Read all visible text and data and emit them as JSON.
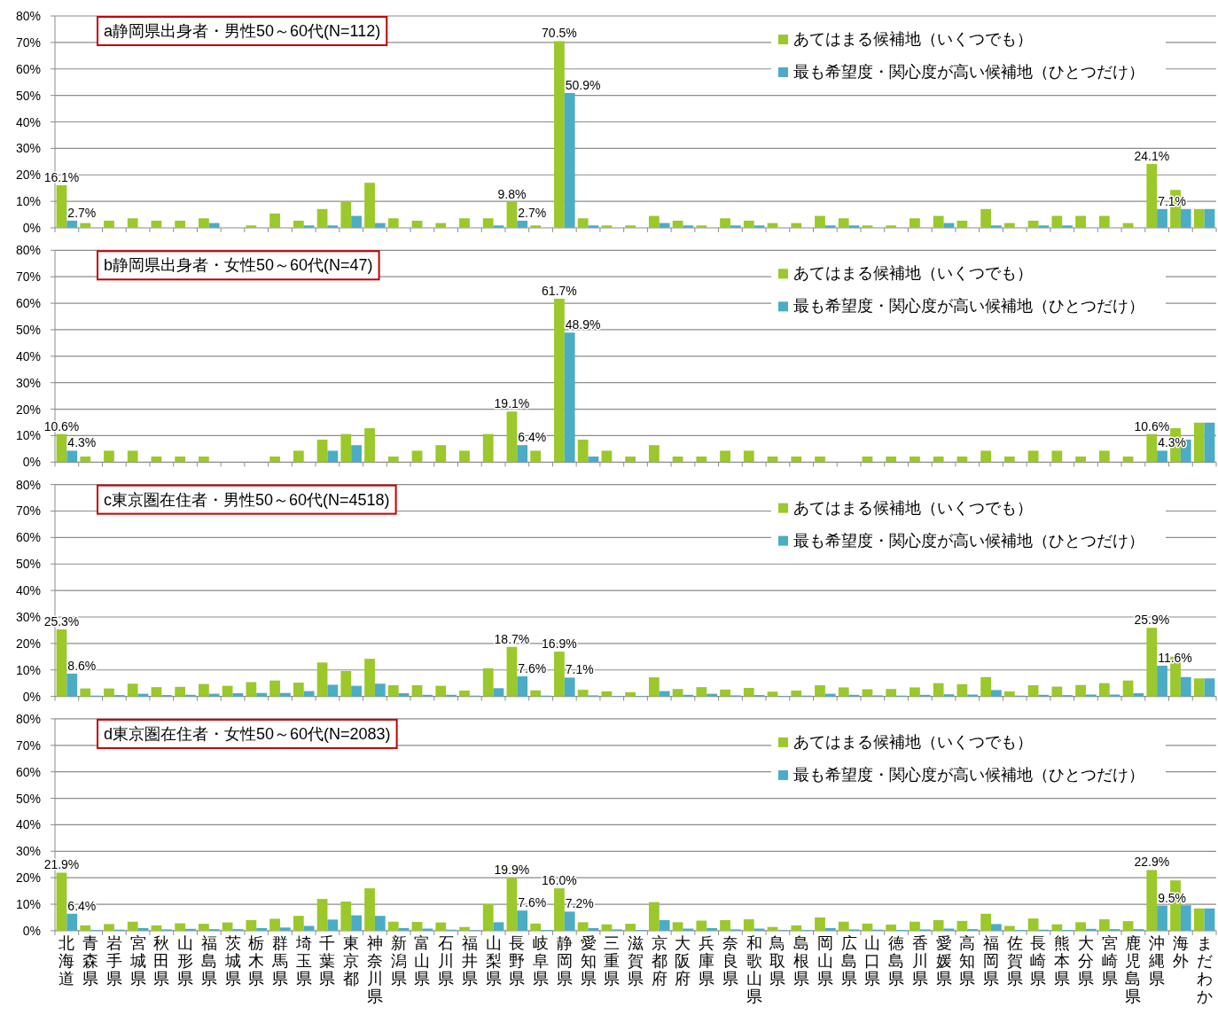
{
  "chart_data": [
    {
      "type": "bar",
      "title": "a静岡県出身者・男性50～60代(N=112)",
      "categories": [
        "北海道",
        "青森県",
        "岩手県",
        "宮城県",
        "秋田県",
        "山形県",
        "福島県",
        "茨城県",
        "栃木県",
        "群馬県",
        "埼玉県",
        "千葉県",
        "東京都",
        "神奈川県",
        "新潟県",
        "富山県",
        "石川県",
        "福井県",
        "山梨県",
        "長野県",
        "岐阜県",
        "静岡県",
        "愛知県",
        "三重県",
        "滋賀県",
        "京都府",
        "大阪府",
        "兵庫県",
        "奈良県",
        "和歌山県",
        "鳥取県",
        "島根県",
        "岡山県",
        "広島県",
        "山口県",
        "徳島県",
        "香川県",
        "愛媛県",
        "高知県",
        "福岡県",
        "佐賀県",
        "長崎県",
        "熊本県",
        "大分県",
        "宮崎県",
        "鹿児島県",
        "沖縄県",
        "海外",
        "まだわか"
      ],
      "ylim": [
        0,
        80
      ],
      "yticks": [
        {
          "value": 0,
          "label": "0%"
        },
        {
          "value": 10,
          "label": "10%"
        },
        {
          "value": 20,
          "label": "20%"
        },
        {
          "value": 30,
          "label": "30%"
        },
        {
          "value": 40,
          "label": "40%"
        },
        {
          "value": 50,
          "label": "50%"
        },
        {
          "value": 60,
          "label": "60%"
        },
        {
          "value": 70,
          "label": "70%"
        },
        {
          "value": 80,
          "label": "80%"
        }
      ],
      "grid": "y",
      "legend": "top right",
      "tick_labels": "y",
      "series": [
        {
          "name": "あてはまる候補地（いくつでも）",
          "color": "#9bc82a",
          "values": [
            16.1,
            1.8,
            2.7,
            3.6,
            2.7,
            2.7,
            3.6,
            0,
            0.9,
            5.4,
            2.7,
            7.1,
            9.8,
            17.0,
            3.6,
            2.7,
            1.8,
            3.6,
            3.6,
            9.8,
            0.9,
            70.5,
            3.6,
            0.9,
            0.9,
            4.5,
            2.7,
            0.9,
            3.6,
            2.7,
            1.8,
            1.8,
            4.5,
            3.6,
            0.9,
            0.9,
            3.6,
            4.5,
            2.7,
            7.1,
            1.8,
            2.7,
            4.5,
            4.5,
            4.5,
            1.8,
            24.1,
            14.3,
            7.1
          ],
          "value_labels": [
            "16.1%",
            null,
            null,
            null,
            null,
            null,
            null,
            null,
            null,
            null,
            null,
            null,
            null,
            null,
            null,
            null,
            null,
            null,
            null,
            "9.8%",
            null,
            "70.5%",
            null,
            null,
            null,
            null,
            null,
            null,
            null,
            null,
            null,
            null,
            null,
            null,
            null,
            null,
            null,
            null,
            null,
            null,
            null,
            null,
            null,
            null,
            null,
            null,
            "24.1%",
            null,
            null
          ]
        },
        {
          "name": "最も希望度・関心度が高い候補地（ひとつだけ）",
          "color": "#4bacc6",
          "values": [
            2.7,
            0,
            0,
            0,
            0,
            0,
            1.8,
            0,
            0,
            0,
            0.9,
            0.9,
            4.5,
            1.8,
            0,
            0,
            0,
            0,
            0.9,
            2.7,
            0,
            50.9,
            0.9,
            0,
            0,
            1.8,
            0.9,
            0,
            0.9,
            0.9,
            0,
            0,
            0.9,
            0.9,
            0,
            0,
            0,
            1.8,
            0,
            0.9,
            0,
            0.9,
            0.9,
            0,
            0,
            0,
            7.1,
            7.1,
            7.1
          ],
          "value_labels": [
            "2.7%",
            null,
            null,
            null,
            null,
            null,
            null,
            null,
            null,
            null,
            null,
            null,
            null,
            null,
            null,
            null,
            null,
            null,
            null,
            "2.7%",
            null,
            "50.9%",
            null,
            null,
            null,
            null,
            null,
            null,
            null,
            null,
            null,
            null,
            null,
            null,
            null,
            null,
            null,
            null,
            null,
            null,
            null,
            null,
            null,
            null,
            null,
            null,
            "7.1%",
            null,
            null
          ]
        }
      ]
    },
    {
      "type": "bar",
      "title": "b静岡県出身者・女性50～60代(N=47)",
      "categories": [
        "北海道",
        "青森県",
        "岩手県",
        "宮城県",
        "秋田県",
        "山形県",
        "福島県",
        "茨城県",
        "栃木県",
        "群馬県",
        "埼玉県",
        "千葉県",
        "東京都",
        "神奈川県",
        "新潟県",
        "富山県",
        "石川県",
        "福井県",
        "山梨県",
        "長野県",
        "岐阜県",
        "静岡県",
        "愛知県",
        "三重県",
        "滋賀県",
        "京都府",
        "大阪府",
        "兵庫県",
        "奈良県",
        "和歌山県",
        "鳥取県",
        "島根県",
        "岡山県",
        "広島県",
        "山口県",
        "徳島県",
        "香川県",
        "愛媛県",
        "高知県",
        "福岡県",
        "佐賀県",
        "長崎県",
        "熊本県",
        "大分県",
        "宮崎県",
        "鹿児島県",
        "沖縄県",
        "海外",
        "まだわか"
      ],
      "ylim": [
        0,
        80
      ],
      "yticks": [
        {
          "value": 0,
          "label": "0%"
        },
        {
          "value": 10,
          "label": "10%"
        },
        {
          "value": 20,
          "label": "20%"
        },
        {
          "value": 30,
          "label": "30%"
        },
        {
          "value": 40,
          "label": "40%"
        },
        {
          "value": 50,
          "label": "50%"
        },
        {
          "value": 60,
          "label": "60%"
        },
        {
          "value": 70,
          "label": "70%"
        },
        {
          "value": 80,
          "label": "80%"
        }
      ],
      "grid": "y",
      "legend": "top right",
      "tick_labels": "y",
      "series": [
        {
          "name": "あてはまる候補地（いくつでも）",
          "color": "#9bc82a",
          "values": [
            10.6,
            2.1,
            4.3,
            4.3,
            2.1,
            2.1,
            2.1,
            0,
            0,
            2.1,
            4.3,
            8.5,
            10.6,
            12.8,
            2.1,
            4.3,
            6.4,
            4.3,
            10.6,
            19.1,
            4.3,
            61.7,
            8.5,
            4.3,
            2.1,
            6.4,
            2.1,
            2.1,
            4.3,
            4.3,
            2.1,
            2.1,
            2.1,
            0,
            2.1,
            2.1,
            2.1,
            2.1,
            2.1,
            4.3,
            2.1,
            4.3,
            4.3,
            2.1,
            4.3,
            2.1,
            10.6,
            12.8,
            14.9
          ],
          "value_labels": [
            "10.6%",
            null,
            null,
            null,
            null,
            null,
            null,
            null,
            null,
            null,
            null,
            null,
            null,
            null,
            null,
            null,
            null,
            null,
            null,
            "19.1%",
            null,
            "61.7%",
            null,
            null,
            null,
            null,
            null,
            null,
            null,
            null,
            null,
            null,
            null,
            null,
            null,
            null,
            null,
            null,
            null,
            null,
            null,
            null,
            null,
            null,
            null,
            null,
            "10.6%",
            null,
            null
          ]
        },
        {
          "name": "最も希望度・関心度が高い候補地（ひとつだけ）",
          "color": "#4bacc6",
          "values": [
            4.3,
            0,
            0,
            0,
            0,
            0,
            0,
            0,
            0,
            0,
            0,
            4.3,
            6.4,
            0,
            0,
            0,
            0,
            0,
            0,
            6.4,
            0,
            48.9,
            2.1,
            0,
            0,
            0,
            0,
            0,
            0,
            0,
            0,
            0,
            0,
            0,
            0,
            0,
            0,
            0,
            0,
            0,
            0,
            0,
            0,
            0,
            0,
            0,
            4.3,
            8.5,
            14.9
          ],
          "value_labels": [
            "4.3%",
            null,
            null,
            null,
            null,
            null,
            null,
            null,
            null,
            null,
            null,
            null,
            null,
            null,
            null,
            null,
            null,
            null,
            null,
            "6.4%",
            null,
            "48.9%",
            null,
            null,
            null,
            null,
            null,
            null,
            null,
            null,
            null,
            null,
            null,
            null,
            null,
            null,
            null,
            null,
            null,
            null,
            null,
            null,
            null,
            null,
            null,
            null,
            "4.3%",
            null,
            null
          ]
        }
      ]
    },
    {
      "type": "bar",
      "title": "c東京圏在住者・男性50～60代(N=4518)",
      "categories": [
        "北海道",
        "青森県",
        "岩手県",
        "宮城県",
        "秋田県",
        "山形県",
        "福島県",
        "茨城県",
        "栃木県",
        "群馬県",
        "埼玉県",
        "千葉県",
        "東京都",
        "神奈川県",
        "新潟県",
        "富山県",
        "石川県",
        "福井県",
        "山梨県",
        "長野県",
        "岐阜県",
        "静岡県",
        "愛知県",
        "三重県",
        "滋賀県",
        "京都府",
        "大阪府",
        "兵庫県",
        "奈良県",
        "和歌山県",
        "鳥取県",
        "島根県",
        "岡山県",
        "広島県",
        "山口県",
        "徳島県",
        "香川県",
        "愛媛県",
        "高知県",
        "福岡県",
        "佐賀県",
        "長崎県",
        "熊本県",
        "大分県",
        "宮崎県",
        "鹿児島県",
        "沖縄県",
        "海外",
        "まだわか"
      ],
      "ylim": [
        0,
        80
      ],
      "yticks": [
        {
          "value": 0,
          "label": "0%"
        },
        {
          "value": 10,
          "label": "10%"
        },
        {
          "value": 20,
          "label": "20%"
        },
        {
          "value": 30,
          "label": "30%"
        },
        {
          "value": 40,
          "label": "40%"
        },
        {
          "value": 50,
          "label": "50%"
        },
        {
          "value": 60,
          "label": "60%"
        },
        {
          "value": 70,
          "label": "70%"
        },
        {
          "value": 80,
          "label": "80%"
        }
      ],
      "grid": "y",
      "legend": "top right",
      "tick_labels": "y",
      "series": [
        {
          "name": "あてはまる候補地（いくつでも）",
          "color": "#9bc82a",
          "values": [
            25.3,
            3.0,
            3.0,
            4.8,
            3.5,
            3.6,
            4.7,
            4.0,
            5.4,
            6.0,
            5.2,
            12.8,
            9.6,
            14.2,
            4.2,
            4.2,
            4.0,
            2.2,
            10.6,
            18.7,
            2.3,
            16.9,
            2.5,
            1.9,
            1.6,
            7.2,
            2.8,
            3.5,
            2.6,
            3.2,
            1.8,
            2.2,
            4.2,
            3.4,
            2.7,
            2.8,
            3.4,
            5.0,
            4.6,
            7.3,
            1.9,
            4.2,
            3.7,
            4.3,
            5.0,
            6.0,
            25.9,
            15.0,
            6.8
          ],
          "value_labels": [
            "25.3%",
            null,
            null,
            null,
            null,
            null,
            null,
            null,
            null,
            null,
            null,
            null,
            null,
            null,
            null,
            null,
            null,
            null,
            null,
            "18.7%",
            null,
            "16.9%",
            null,
            null,
            null,
            null,
            null,
            null,
            null,
            null,
            null,
            null,
            null,
            null,
            null,
            null,
            null,
            null,
            null,
            null,
            null,
            null,
            null,
            null,
            null,
            null,
            "25.9%",
            null,
            null
          ]
        },
        {
          "name": "最も希望度・関心度が高い候補地（ひとつだけ）",
          "color": "#4bacc6",
          "values": [
            8.6,
            0.3,
            0.5,
            1.0,
            0.5,
            0.6,
            1.0,
            1.2,
            1.3,
            1.3,
            2.0,
            4.4,
            4.0,
            4.8,
            1.2,
            0.6,
            0.6,
            0.3,
            3.1,
            7.6,
            0.3,
            7.1,
            0.4,
            0.2,
            0.2,
            2.0,
            0.6,
            1.0,
            0.4,
            0.5,
            0.2,
            0.3,
            1.0,
            0.6,
            0.4,
            0.3,
            0.6,
            0.8,
            0.7,
            2.4,
            0.3,
            0.6,
            0.5,
            0.7,
            0.7,
            1.2,
            11.6,
            7.3,
            6.8
          ],
          "value_labels": [
            "8.6%",
            null,
            null,
            null,
            null,
            null,
            null,
            null,
            null,
            null,
            null,
            null,
            null,
            null,
            null,
            null,
            null,
            null,
            null,
            "7.6%",
            null,
            "7.1%",
            null,
            null,
            null,
            null,
            null,
            null,
            null,
            null,
            null,
            null,
            null,
            null,
            null,
            null,
            null,
            null,
            null,
            null,
            null,
            null,
            null,
            null,
            null,
            null,
            "11.6%",
            null,
            null
          ]
        }
      ]
    },
    {
      "type": "bar",
      "title": "d東京圏在住者・女性50～60代(N=2083)",
      "categories": [
        "北海道",
        "青森県",
        "岩手県",
        "宮城県",
        "秋田県",
        "山形県",
        "福島県",
        "茨城県",
        "栃木県",
        "群馬県",
        "埼玉県",
        "千葉県",
        "東京都",
        "神奈川県",
        "新潟県",
        "富山県",
        "石川県",
        "福井県",
        "山梨県",
        "長野県",
        "岐阜県",
        "静岡県",
        "愛知県",
        "三重県",
        "滋賀県",
        "京都府",
        "大阪府",
        "兵庫県",
        "奈良県",
        "和歌山県",
        "鳥取県",
        "島根県",
        "岡山県",
        "広島県",
        "山口県",
        "徳島県",
        "香川県",
        "愛媛県",
        "高知県",
        "福岡県",
        "佐賀県",
        "長崎県",
        "熊本県",
        "大分県",
        "宮崎県",
        "鹿児島県",
        "沖縄県",
        "海外",
        "まだわか"
      ],
      "ylim": [
        0,
        80
      ],
      "yticks": [
        {
          "value": 0,
          "label": "0%"
        },
        {
          "value": 10,
          "label": "10%"
        },
        {
          "value": 20,
          "label": "20%"
        },
        {
          "value": 30,
          "label": "30%"
        },
        {
          "value": 40,
          "label": "40%"
        },
        {
          "value": 50,
          "label": "50%"
        },
        {
          "value": 60,
          "label": "60%"
        },
        {
          "value": 70,
          "label": "70%"
        },
        {
          "value": 80,
          "label": "80%"
        }
      ],
      "grid": "y",
      "legend": "top right",
      "series": [
        {
          "name": "あてはまる候補地（いくつでも）",
          "color": "#9bc82a",
          "values": [
            21.9,
            2.0,
            2.5,
            3.4,
            2.0,
            2.8,
            2.6,
            3.1,
            4.0,
            4.5,
            5.6,
            12.0,
            11.0,
            16.0,
            3.4,
            3.3,
            3.1,
            1.4,
            10.0,
            19.9,
            2.7,
            16.0,
            3.2,
            2.4,
            2.6,
            10.8,
            3.2,
            3.8,
            4.0,
            4.3,
            1.4,
            2.0,
            5.0,
            3.4,
            2.7,
            2.3,
            3.4,
            4.0,
            3.7,
            6.4,
            1.8,
            4.6,
            2.4,
            3.2,
            4.3,
            3.6,
            22.9,
            19.0,
            8.4
          ],
          "value_labels": [
            "21.9%",
            null,
            null,
            null,
            null,
            null,
            null,
            null,
            null,
            null,
            null,
            null,
            null,
            null,
            null,
            null,
            null,
            null,
            null,
            "19.9%",
            null,
            "16.0%",
            null,
            null,
            null,
            null,
            null,
            null,
            null,
            null,
            null,
            null,
            null,
            null,
            null,
            null,
            null,
            null,
            null,
            null,
            null,
            null,
            null,
            null,
            null,
            null,
            "22.9%",
            null,
            null
          ]
        },
        {
          "name": "最も希望度・関心度が高い候補地（ひとつだけ）",
          "color": "#4bacc6",
          "values": [
            6.4,
            0.3,
            0.4,
            1.0,
            0.5,
            0.7,
            0.6,
            0.6,
            1.0,
            1.2,
            1.8,
            4.2,
            5.8,
            5.6,
            1.0,
            0.8,
            0.4,
            0.2,
            3.2,
            7.6,
            0.3,
            7.2,
            1.0,
            0.5,
            0.3,
            4.0,
            0.8,
            1.0,
            0.5,
            0.8,
            0.2,
            0.3,
            1.0,
            0.5,
            0.4,
            0.3,
            0.5,
            0.8,
            0.6,
            2.5,
            0.3,
            0.4,
            0.3,
            0.7,
            0.6,
            0.6,
            9.5,
            9.6,
            8.4
          ],
          "value_labels": [
            "6.4%",
            null,
            null,
            null,
            null,
            null,
            null,
            null,
            null,
            null,
            null,
            null,
            null,
            null,
            null,
            null,
            null,
            null,
            null,
            "7.6%",
            null,
            "7.2%",
            null,
            null,
            null,
            null,
            null,
            null,
            null,
            null,
            null,
            null,
            null,
            null,
            null,
            null,
            null,
            null,
            null,
            null,
            null,
            null,
            null,
            null,
            null,
            null,
            "9.5%",
            null,
            null
          ]
        }
      ]
    }
  ]
}
